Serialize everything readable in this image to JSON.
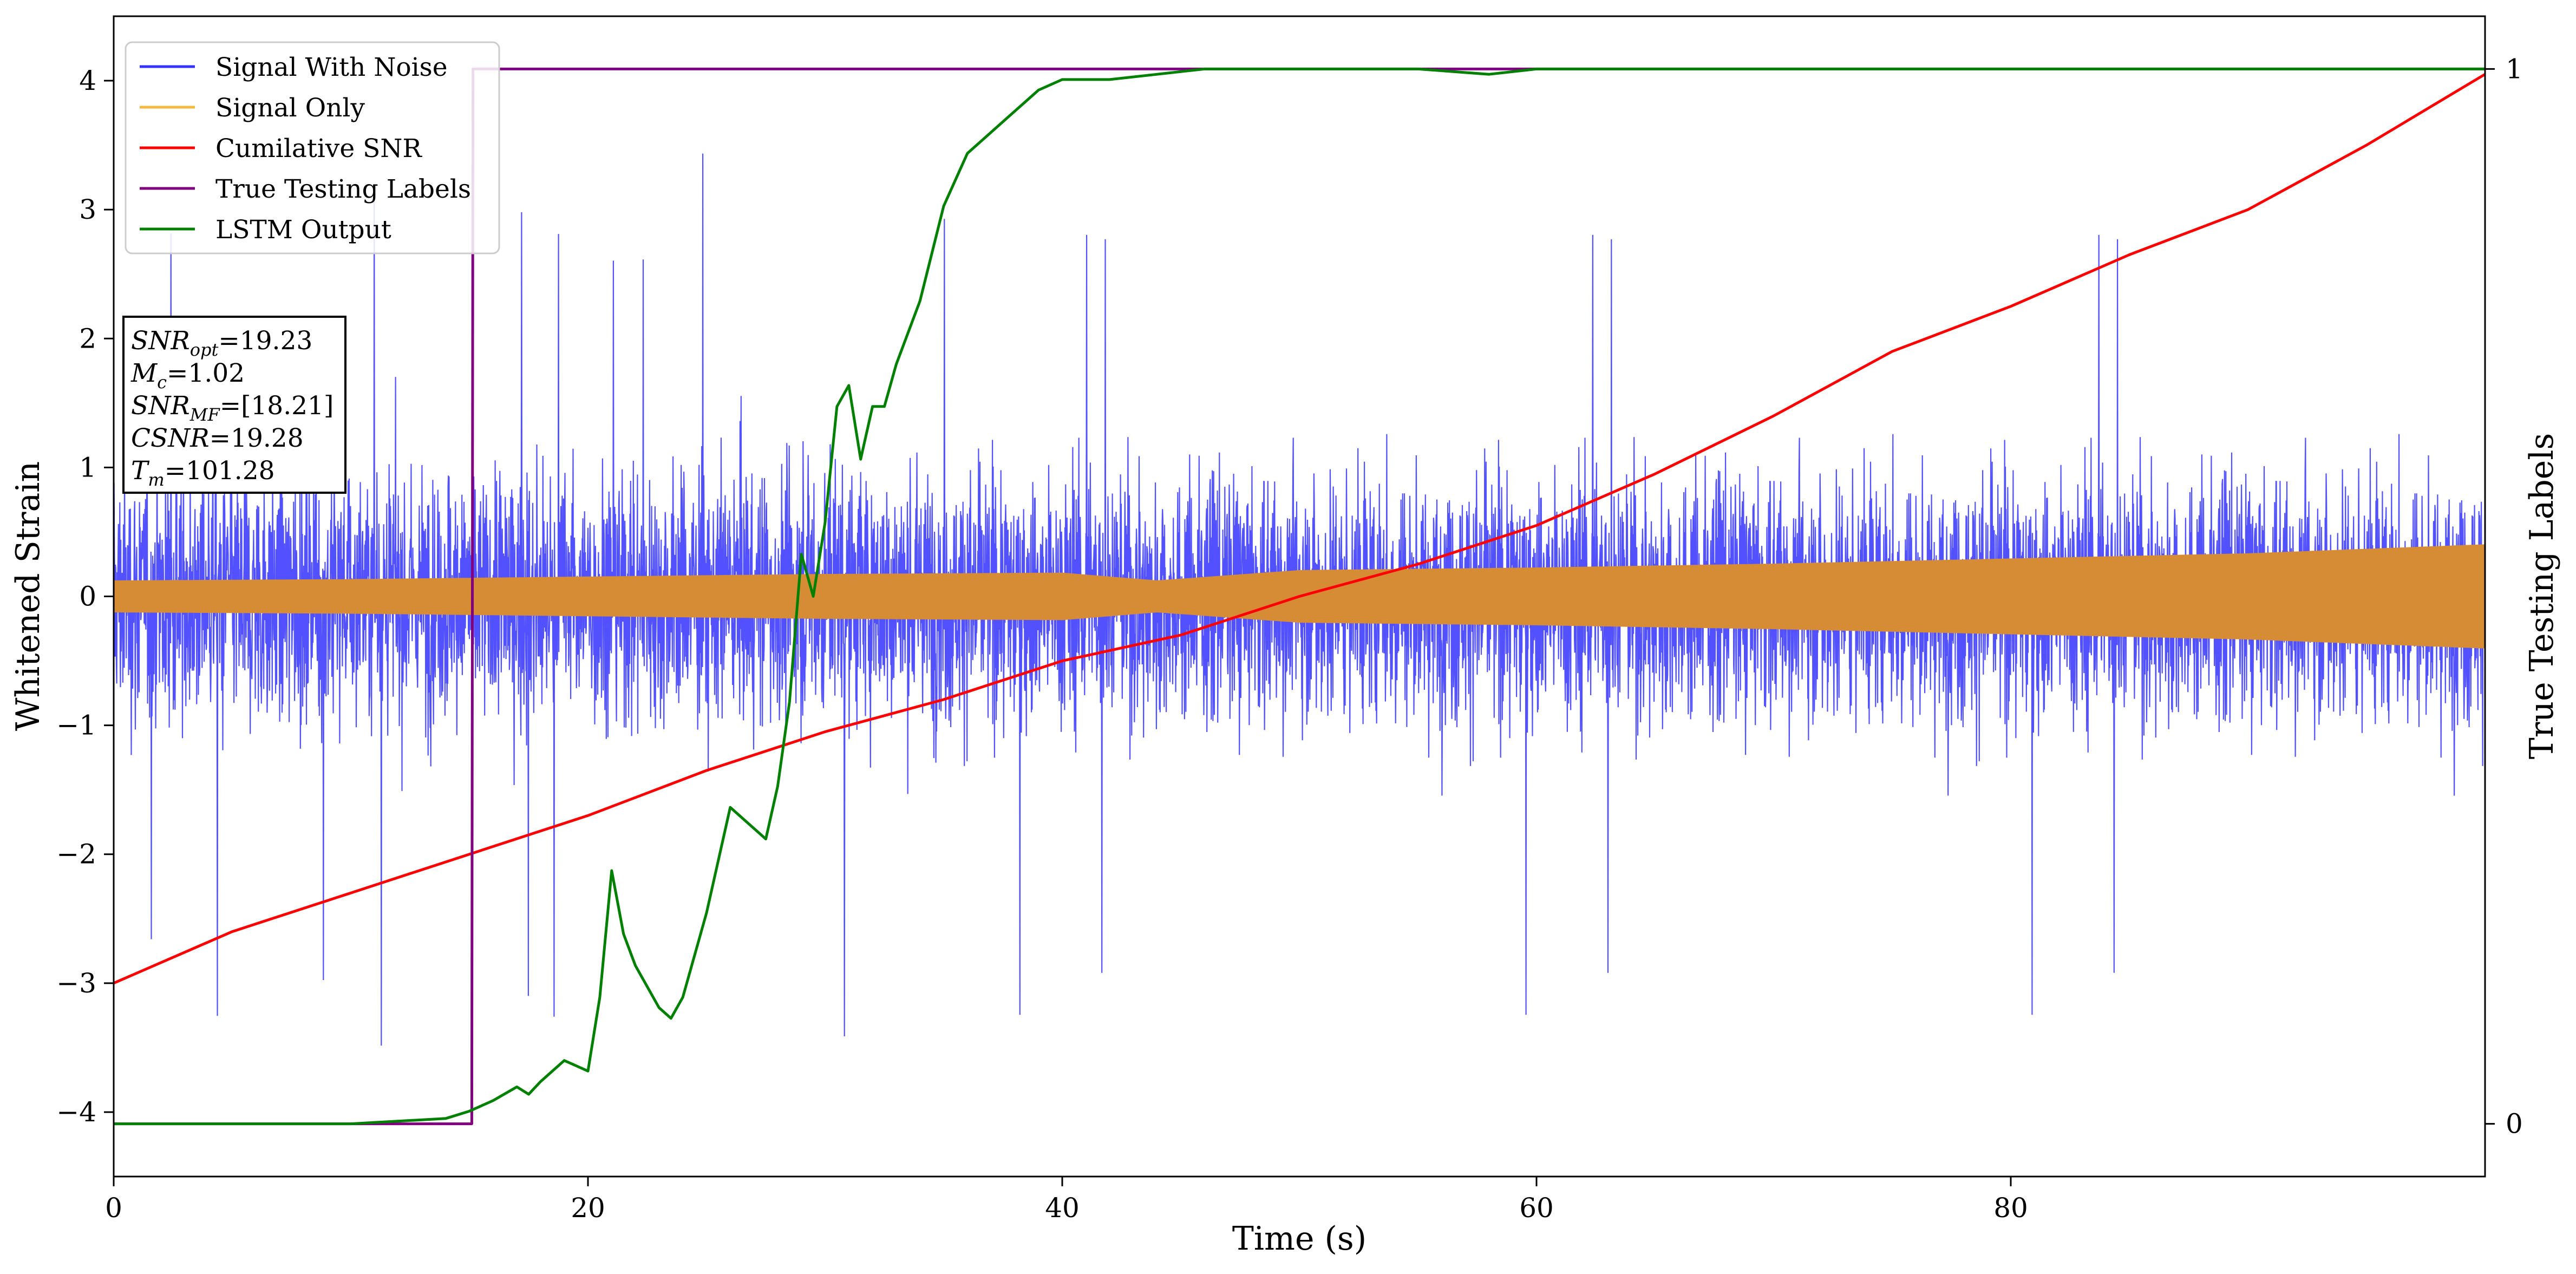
{
  "chart_data": {
    "type": "line",
    "title": "",
    "xlabel": "Time (s)",
    "ylabel_left": "Whitened Strain",
    "ylabel_right": "True Testing Labels",
    "xlim": [
      0,
      100
    ],
    "ylim_left": [
      -4.5,
      4.5
    ],
    "ylim_right": [
      -0.05,
      1.05
    ],
    "x_ticks": [
      0,
      20,
      40,
      60,
      80
    ],
    "x_tick_labels": [
      "0",
      "20",
      "40",
      "60",
      "80"
    ],
    "y_left_ticks": [
      -4,
      -3,
      -2,
      -1,
      0,
      1,
      2,
      3,
      4
    ],
    "y_left_tick_labels": [
      "−4",
      "−3",
      "−2",
      "−1",
      "0",
      "1",
      "2",
      "3",
      "4"
    ],
    "y_right_ticks": [
      0,
      1
    ],
    "y_right_tick_labels": [
      "0",
      "1"
    ],
    "grid": false,
    "legend_position": "top-left",
    "series": [
      {
        "name": "Signal With Noise",
        "color": "#3333ff",
        "axis": "left",
        "description_amplitude": {
          "typical_abs_max": 1.5,
          "extreme_min": -3.9,
          "extreme_max": 4.1
        }
      },
      {
        "name": "Signal Only",
        "color": "#f5b942",
        "axis": "left",
        "envelope": {
          "x": [
            0,
            10,
            20,
            30,
            40,
            44,
            50,
            60,
            70,
            80,
            90,
            100
          ],
          "y": [
            0.12,
            0.13,
            0.15,
            0.17,
            0.18,
            0.12,
            0.2,
            0.22,
            0.25,
            0.29,
            0.33,
            0.4
          ]
        }
      },
      {
        "name": "Cumilative SNR",
        "color": "#ff0000",
        "axis": "left",
        "x": [
          0,
          5,
          10,
          15,
          20,
          25,
          30,
          35,
          40,
          45,
          50,
          55,
          60,
          65,
          70,
          75,
          80,
          85,
          90,
          95,
          100
        ],
        "y": [
          -3.0,
          -2.6,
          -2.3,
          -2.0,
          -1.7,
          -1.35,
          -1.05,
          -0.8,
          -0.5,
          -0.3,
          0.0,
          0.25,
          0.55,
          0.95,
          1.4,
          1.9,
          2.25,
          2.65,
          3.0,
          3.5,
          4.05
        ]
      },
      {
        "name": "True Testing Labels",
        "color": "#800080",
        "axis": "right",
        "x": [
          0,
          15.1,
          15.15,
          100
        ],
        "y": [
          0,
          0,
          1,
          1
        ]
      },
      {
        "name": "LSTM Output",
        "color": "#008000",
        "axis": "right",
        "x": [
          0,
          10,
          14,
          15,
          16,
          17,
          17.5,
          18,
          19,
          19.5,
          20,
          20.5,
          21,
          21.5,
          22,
          23,
          23.5,
          24,
          25,
          26,
          27,
          27.5,
          28,
          28.5,
          29,
          29.5,
          30,
          30.5,
          31,
          31.5,
          32,
          32.5,
          33,
          34,
          35,
          36,
          37,
          38,
          39,
          40,
          42,
          44,
          46,
          48,
          50,
          55,
          58,
          60,
          62,
          64,
          70,
          80,
          90,
          100
        ],
        "y": [
          0,
          0,
          0.005,
          0.012,
          0.022,
          0.035,
          0.028,
          0.04,
          0.06,
          0.055,
          0.05,
          0.12,
          0.24,
          0.18,
          0.15,
          0.11,
          0.1,
          0.12,
          0.2,
          0.3,
          0.28,
          0.27,
          0.32,
          0.4,
          0.54,
          0.5,
          0.57,
          0.68,
          0.7,
          0.63,
          0.68,
          0.68,
          0.72,
          0.78,
          0.87,
          0.92,
          0.94,
          0.96,
          0.98,
          0.99,
          0.99,
          0.995,
          1.0,
          1.0,
          1.0,
          1.0,
          0.995,
          1.0,
          1.0,
          1.0,
          1.0,
          1.0,
          1.0,
          1.0
        ]
      }
    ],
    "annotation_box": {
      "lines": [
        {
          "base": "SNR",
          "sub": "opt",
          "rest": "=19.23"
        },
        {
          "base": "M",
          "sub": "c",
          "rest": "=1.02"
        },
        {
          "base": "SNR",
          "sub": "MF",
          "rest": "=[18.21]"
        },
        {
          "base": "CSNR",
          "sub": "",
          "rest": "=19.28"
        },
        {
          "base": "T",
          "sub": "m",
          "rest": "=101.28"
        }
      ]
    }
  }
}
